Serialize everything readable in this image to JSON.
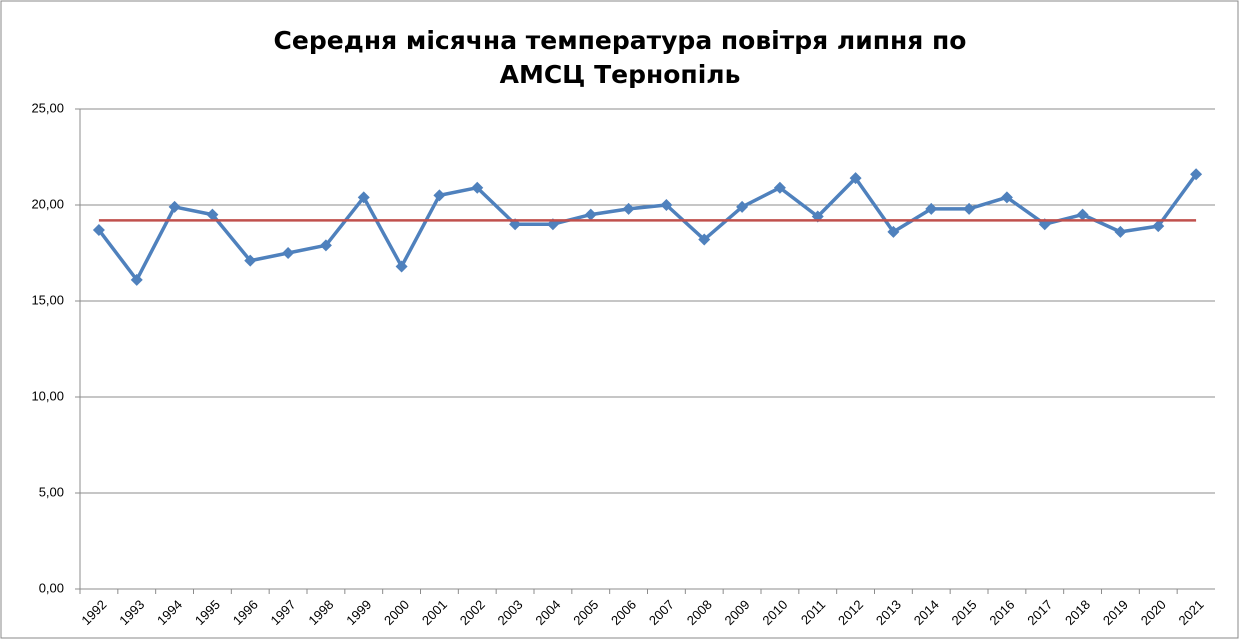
{
  "chart_data": {
    "type": "line",
    "title": [
      "Середня місячна температура повітря липня по",
      "АМСЦ Тернопіль"
    ],
    "categories": [
      "1992",
      "1993",
      "1994",
      "1995",
      "1996",
      "1997",
      "1998",
      "1999",
      "2000",
      "2001",
      "2002",
      "2003",
      "2004",
      "2005",
      "2006",
      "2007",
      "2008",
      "2009",
      "2010",
      "2011",
      "2012",
      "2013",
      "2014",
      "2015",
      "2016",
      "2017",
      "2018",
      "2019",
      "2020",
      "2021"
    ],
    "series": [
      {
        "color": "#4f81bd",
        "marker": "diamond",
        "values": [
          18.7,
          16.1,
          19.9,
          19.5,
          17.1,
          17.5,
          17.9,
          20.4,
          16.8,
          20.5,
          20.9,
          19.0,
          19.0,
          19.5,
          19.8,
          20.0,
          18.2,
          19.9,
          20.9,
          19.4,
          21.4,
          18.6,
          19.8,
          19.8,
          20.4,
          19.0,
          19.5,
          18.6,
          18.9,
          21.6
        ]
      },
      {
        "color": "#c0504d",
        "marker": "none",
        "values": [
          19.2,
          19.2,
          19.2,
          19.2,
          19.2,
          19.2,
          19.2,
          19.2,
          19.2,
          19.2,
          19.2,
          19.2,
          19.2,
          19.2,
          19.2,
          19.2,
          19.2,
          19.2,
          19.2,
          19.2,
          19.2,
          19.2,
          19.2,
          19.2,
          19.2,
          19.2,
          19.2,
          19.2,
          19.2,
          19.2
        ]
      }
    ],
    "ylim": [
      0,
      25
    ],
    "yticks": [
      {
        "value": 0,
        "label": "0,00"
      },
      {
        "value": 5,
        "label": "5,00"
      },
      {
        "value": 10,
        "label": "10,00"
      },
      {
        "value": 15,
        "label": "15,00"
      },
      {
        "value": 20,
        "label": "20,00"
      },
      {
        "value": 25,
        "label": "25,00"
      }
    ],
    "grid": true
  }
}
